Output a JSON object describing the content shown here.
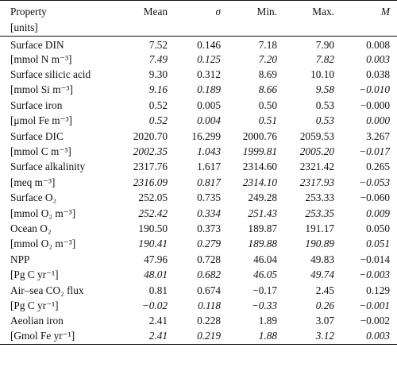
{
  "header": {
    "property": "Property",
    "units": "[units]",
    "mean": "Mean",
    "sigma": "σ",
    "min": "Min.",
    "max": "Max.",
    "m": "M"
  },
  "rows": [
    {
      "label": "Surface DIN",
      "mean": "7.52",
      "sigma": "0.146",
      "min": "7.18",
      "max": "7.90",
      "m": "0.008"
    },
    {
      "label": "[mmol N m⁻³]",
      "mean": "7.49",
      "sigma": "0.125",
      "min": "7.20",
      "max": "7.82",
      "m": "0.003"
    },
    {
      "label": "Surface silicic acid",
      "mean": "9.30",
      "sigma": "0.312",
      "min": "8.69",
      "max": "10.10",
      "m": "0.038"
    },
    {
      "label": "[mmol Si m⁻³]",
      "mean": "9.16",
      "sigma": "0.189",
      "min": "8.66",
      "max": "9.58",
      "m": "−0.010"
    },
    {
      "label": "Surface iron",
      "mean": "0.52",
      "sigma": "0.005",
      "min": "0.50",
      "max": "0.53",
      "m": "−0.000"
    },
    {
      "label": "[μmol Fe m⁻³]",
      "mean": "0.52",
      "sigma": "0.004",
      "min": "0.51",
      "max": "0.53",
      "m": "0.000"
    },
    {
      "label": "Surface DIC",
      "mean": "2020.70",
      "sigma": "16.299",
      "min": "2000.76",
      "max": "2059.53",
      "m": "3.267"
    },
    {
      "label": "[mmol C m⁻³]",
      "mean": "2002.35",
      "sigma": "1.043",
      "min": "1999.81",
      "max": "2005.20",
      "m": "−0.017"
    },
    {
      "label": "Surface alkalinity",
      "mean": "2317.76",
      "sigma": "1.617",
      "min": "2314.60",
      "max": "2321.42",
      "m": "0.265"
    },
    {
      "label": "[meq m⁻³]",
      "mean": "2316.09",
      "sigma": "0.817",
      "min": "2314.10",
      "max": "2317.93",
      "m": "−0.053"
    },
    {
      "label": "Surface O₂",
      "mean": "252.05",
      "sigma": "0.735",
      "min": "249.28",
      "max": "253.33",
      "m": "−0.060"
    },
    {
      "label": "[mmol O₂ m⁻³]",
      "mean": "252.42",
      "sigma": "0.334",
      "min": "251.43",
      "max": "253.35",
      "m": "0.009"
    },
    {
      "label": "Ocean O₂",
      "mean": "190.50",
      "sigma": "0.373",
      "min": "189.87",
      "max": "191.17",
      "m": "0.050"
    },
    {
      "label": "[mmol O₂ m⁻³]",
      "mean": "190.41",
      "sigma": "0.279",
      "min": "189.88",
      "max": "190.89",
      "m": "0.051"
    },
    {
      "label": "NPP",
      "mean": "47.96",
      "sigma": "0.728",
      "min": "46.04",
      "max": "49.83",
      "m": "−0.014"
    },
    {
      "label": "[Pg C yr⁻¹]",
      "mean": "48.01",
      "sigma": "0.682",
      "min": "46.05",
      "max": "49.74",
      "m": "−0.003"
    },
    {
      "label": "Air–sea CO₂ flux",
      "mean": "0.81",
      "sigma": "0.674",
      "min": "−0.17",
      "max": "2.45",
      "m": "0.129"
    },
    {
      "label": "[Pg C yr⁻¹]",
      "mean": "−0.02",
      "sigma": "0.118",
      "min": "−0.33",
      "max": "0.26",
      "m": "−0.001"
    },
    {
      "label": "Aeolian iron",
      "mean": "2.41",
      "sigma": "0.228",
      "min": "1.89",
      "max": "3.07",
      "m": "−0.002"
    },
    {
      "label": "[Gmol Fe yr⁻¹]",
      "mean": "2.41",
      "sigma": "0.219",
      "min": "1.88",
      "max": "3.12",
      "m": "0.003"
    }
  ]
}
